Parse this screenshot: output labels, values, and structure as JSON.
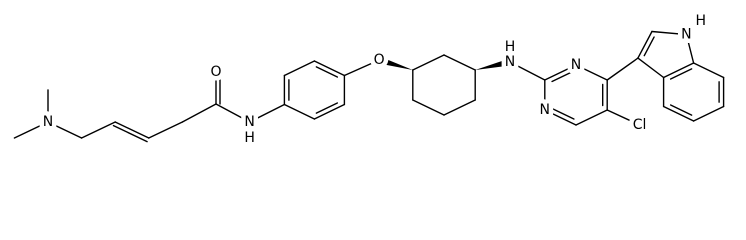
{
  "labels": [
    "N",
    "O",
    "N",
    "H",
    "O",
    "N",
    "H",
    "N",
    "N",
    "N",
    "H",
    "Cl"
  ]
}
